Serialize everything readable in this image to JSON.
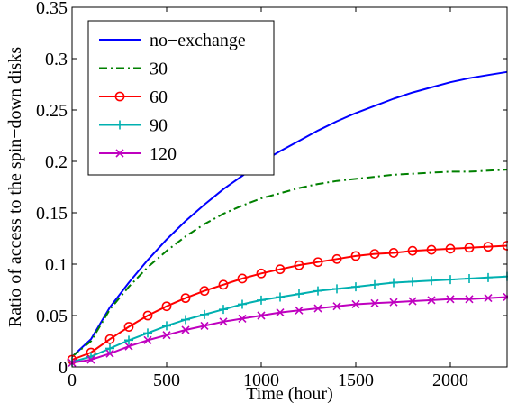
{
  "chart_data": {
    "type": "line",
    "title": "",
    "xlabel": "Time (hour)",
    "ylabel": "Ratio of access to the spin−down disks",
    "xlim": [
      0,
      2300
    ],
    "ylim": [
      0,
      0.35
    ],
    "xticks": [
      0,
      500,
      1000,
      1500,
      2000
    ],
    "xtick_labels": [
      "0",
      "500",
      "1000",
      "1500",
      "2000"
    ],
    "yticks": [
      0,
      0.05,
      0.1,
      0.15,
      0.2,
      0.25,
      0.3,
      0.35
    ],
    "ytick_labels": [
      "0",
      "0.05",
      "0.1",
      "0.15",
      "0.2",
      "0.25",
      "0.3",
      "0.35"
    ],
    "grid": false,
    "legend_position": "top-left",
    "x": [
      0,
      100,
      200,
      300,
      400,
      500,
      600,
      700,
      800,
      900,
      1000,
      1100,
      1200,
      1300,
      1400,
      1500,
      1600,
      1700,
      1800,
      1900,
      2000,
      2100,
      2200,
      2300
    ],
    "series": [
      {
        "name": "no−exchange",
        "color": "#0000ff",
        "line_style": "solid",
        "marker": "none",
        "values": [
          0.01,
          0.027,
          0.058,
          0.082,
          0.104,
          0.124,
          0.142,
          0.158,
          0.173,
          0.186,
          0.199,
          0.21,
          0.22,
          0.23,
          0.239,
          0.247,
          0.254,
          0.261,
          0.267,
          0.272,
          0.277,
          0.281,
          0.284,
          0.287
        ]
      },
      {
        "name": "30",
        "color": "#008000",
        "line_style": "dashdot",
        "marker": "none",
        "values": [
          0.01,
          0.025,
          0.056,
          0.078,
          0.097,
          0.113,
          0.127,
          0.139,
          0.149,
          0.157,
          0.164,
          0.169,
          0.174,
          0.178,
          0.181,
          0.183,
          0.185,
          0.187,
          0.188,
          0.189,
          0.19,
          0.19,
          0.191,
          0.192
        ]
      },
      {
        "name": "60",
        "color": "#ff0000",
        "line_style": "solid",
        "marker": "circle",
        "values": [
          0.007,
          0.014,
          0.027,
          0.039,
          0.05,
          0.059,
          0.067,
          0.074,
          0.08,
          0.086,
          0.091,
          0.095,
          0.099,
          0.102,
          0.105,
          0.108,
          0.11,
          0.111,
          0.113,
          0.114,
          0.115,
          0.116,
          0.117,
          0.118
        ]
      },
      {
        "name": "90",
        "color": "#00b0b0",
        "line_style": "solid",
        "marker": "plus",
        "values": [
          0.005,
          0.01,
          0.018,
          0.026,
          0.033,
          0.04,
          0.046,
          0.051,
          0.056,
          0.061,
          0.065,
          0.068,
          0.071,
          0.074,
          0.076,
          0.078,
          0.08,
          0.082,
          0.083,
          0.084,
          0.085,
          0.086,
          0.087,
          0.088
        ]
      },
      {
        "name": "120",
        "color": "#bf00bf",
        "line_style": "solid",
        "marker": "x",
        "values": [
          0.004,
          0.007,
          0.013,
          0.02,
          0.026,
          0.031,
          0.036,
          0.04,
          0.044,
          0.047,
          0.05,
          0.053,
          0.055,
          0.057,
          0.059,
          0.061,
          0.062,
          0.063,
          0.064,
          0.065,
          0.066,
          0.066,
          0.067,
          0.068
        ]
      }
    ]
  }
}
